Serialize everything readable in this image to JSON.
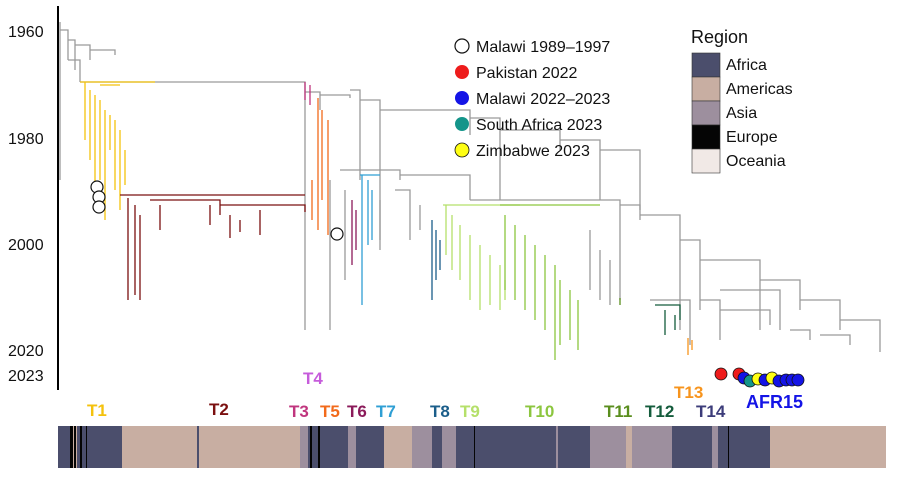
{
  "figure": {
    "y_axis": {
      "ticks": [
        "1960",
        "1980",
        "2000",
        "2020",
        "2023"
      ]
    },
    "sample_legend": [
      {
        "label": "Malawi 1989–1997",
        "color": "#ffffff"
      },
      {
        "label": "Pakistan 2022",
        "color": "#ee1c1c"
      },
      {
        "label": "Malawi 2022–2023",
        "color": "#1414e6"
      },
      {
        "label": "South Africa 2023",
        "color": "#14958a"
      },
      {
        "label": "Zimbabwe 2023",
        "color": "#ffff14"
      }
    ],
    "region_legend": {
      "title": "Region",
      "items": [
        {
          "label": "Africa",
          "color": "#4b4e6c"
        },
        {
          "label": "Americas",
          "color": "#c8aea2"
        },
        {
          "label": "Asia",
          "color": "#9d8f9e"
        },
        {
          "label": "Europe",
          "color": "#050505"
        },
        {
          "label": "Oceania",
          "color": "#f1e9e6"
        }
      ]
    },
    "clades": [
      {
        "label": "T1",
        "color": "#f4c20d"
      },
      {
        "label": "T2",
        "color": "#7b1010"
      },
      {
        "label": "T3",
        "color": "#c0357e"
      },
      {
        "label": "T4",
        "color": "#c65cdb"
      },
      {
        "label": "T5",
        "color": "#f26a1b"
      },
      {
        "label": "T6",
        "color": "#8b1a5a"
      },
      {
        "label": "T7",
        "color": "#2f9fd4"
      },
      {
        "label": "T8",
        "color": "#1b5e8a"
      },
      {
        "label": "T9",
        "color": "#b5e06a"
      },
      {
        "label": "T10",
        "color": "#8cc63f"
      },
      {
        "label": "T11",
        "color": "#5a8e1e"
      },
      {
        "label": "T12",
        "color": "#145c3c"
      },
      {
        "label": "T13",
        "color": "#f7941d"
      },
      {
        "label": "T14",
        "color": "#3c3c7a"
      },
      {
        "label": "AFR15",
        "color": "#1414e6"
      }
    ]
  }
}
